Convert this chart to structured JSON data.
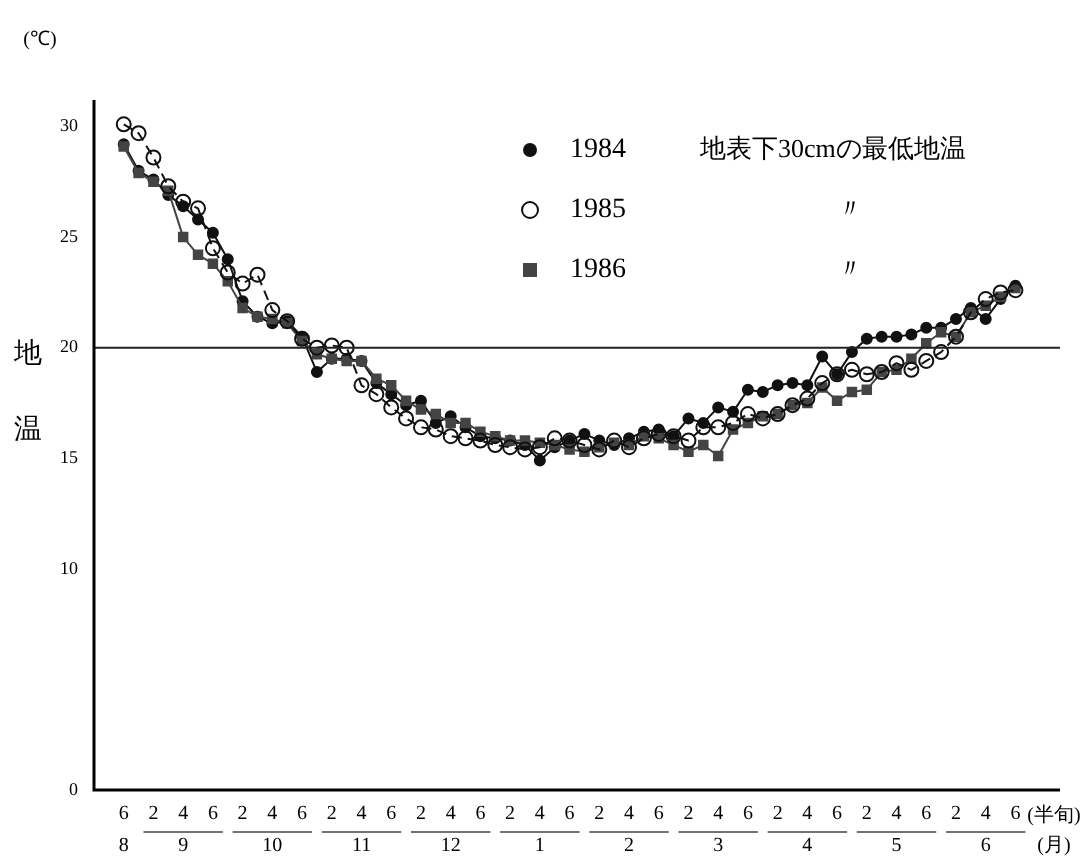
{
  "chart_data": {
    "type": "line",
    "ylabel": "地温",
    "xlabel": "(半旬)",
    "categories": [
      "6",
      null,
      "2",
      null,
      "4",
      null,
      "6",
      null,
      "2",
      null,
      "4",
      null,
      "6",
      null,
      "2",
      null,
      "4",
      null,
      "6",
      null,
      "2",
      null,
      "4",
      null,
      "6",
      null,
      "2",
      null,
      "4",
      null,
      "6",
      null,
      "2",
      null,
      "4",
      null,
      "6",
      null,
      "2",
      null,
      "4",
      null,
      "6",
      null,
      "2",
      null,
      "4",
      null,
      "6",
      null,
      "2",
      null,
      "4",
      null,
      "6",
      null,
      "2",
      null,
      "4",
      null,
      "6"
    ],
    "ylim": [
      0,
      31.2
    ],
    "yticks": [
      0,
      10,
      15,
      20,
      25,
      30
    ],
    "ref_lines": [
      {
        "axis": "y",
        "value": 20,
        "color": "#222222"
      }
    ],
    "legend": "top right",
    "grid": false,
    "annotations": [
      "地表下30cmの最低地温",
      "〃",
      "〃",
      "(℃)",
      "(月)",
      "8",
      "9",
      "10",
      "11",
      "12",
      "1",
      "2",
      "3",
      "4",
      "5",
      "6"
    ],
    "series": [
      {
        "name": "1984",
        "color": "#111111",
        "marker": "circle",
        "line_style": "solid",
        "values": [
          29.2,
          28.0,
          27.6,
          26.9,
          26.4,
          25.8,
          25.2,
          24.0,
          22.1,
          21.4,
          21.1,
          21.2,
          20.5,
          18.9,
          19.5,
          19.5,
          19.4,
          18.4,
          17.9,
          17.4,
          17.6,
          16.6,
          16.9,
          16.4,
          16.0,
          15.9,
          15.8,
          15.6,
          14.9,
          15.5,
          15.8,
          16.1,
          15.8,
          15.6,
          15.9,
          16.2,
          16.3,
          16.0,
          16.8,
          16.6,
          17.3,
          17.1,
          18.1,
          18.0,
          18.3,
          18.4,
          18.3,
          19.6,
          18.8,
          19.8,
          20.4,
          20.5,
          20.5,
          20.6,
          20.9,
          20.9,
          21.3,
          21.8,
          21.3,
          22.2,
          22.8
        ]
      },
      {
        "name": "1985",
        "color": "#111111",
        "marker": "circle_open",
        "line_style": "dashed",
        "values": [
          30.1,
          29.7,
          28.6,
          27.3,
          26.6,
          26.3,
          24.5,
          23.4,
          22.9,
          23.3,
          21.7,
          21.2,
          20.4,
          20.0,
          20.1,
          20.0,
          18.3,
          17.9,
          17.3,
          16.8,
          16.4,
          16.3,
          16.0,
          15.9,
          15.8,
          15.6,
          15.5,
          15.4,
          15.5,
          15.9,
          15.8,
          15.6,
          15.4,
          15.8,
          15.5,
          15.9,
          16.1,
          16.0,
          15.8,
          16.4,
          16.4,
          16.6,
          17.0,
          16.8,
          17.0,
          17.4,
          17.7,
          18.4,
          18.8,
          19.0,
          18.8,
          18.9,
          19.3,
          19.0,
          19.4,
          19.8,
          20.5,
          21.6,
          22.2,
          22.5,
          22.6
        ]
      },
      {
        "name": "1986",
        "color": "#444444",
        "marker": "square",
        "line_style": "solid",
        "values": [
          29.1,
          27.9,
          27.5,
          27.1,
          25.0,
          24.2,
          23.8,
          23.0,
          21.8,
          21.4,
          21.3,
          21.1,
          20.3,
          19.7,
          19.5,
          19.4,
          19.4,
          18.6,
          18.3,
          17.6,
          17.2,
          17.0,
          16.6,
          16.6,
          16.2,
          16.0,
          15.8,
          15.8,
          15.7,
          15.6,
          15.4,
          15.3,
          15.5,
          15.7,
          15.6,
          16.0,
          15.9,
          15.6,
          15.3,
          15.6,
          15.1,
          16.3,
          16.6,
          16.9,
          17.0,
          17.4,
          17.5,
          18.2,
          17.6,
          18.0,
          18.1,
          18.9,
          19.0,
          19.5,
          20.2,
          20.7,
          20.5,
          21.6,
          21.9,
          22.3,
          22.7
        ]
      }
    ]
  }
}
